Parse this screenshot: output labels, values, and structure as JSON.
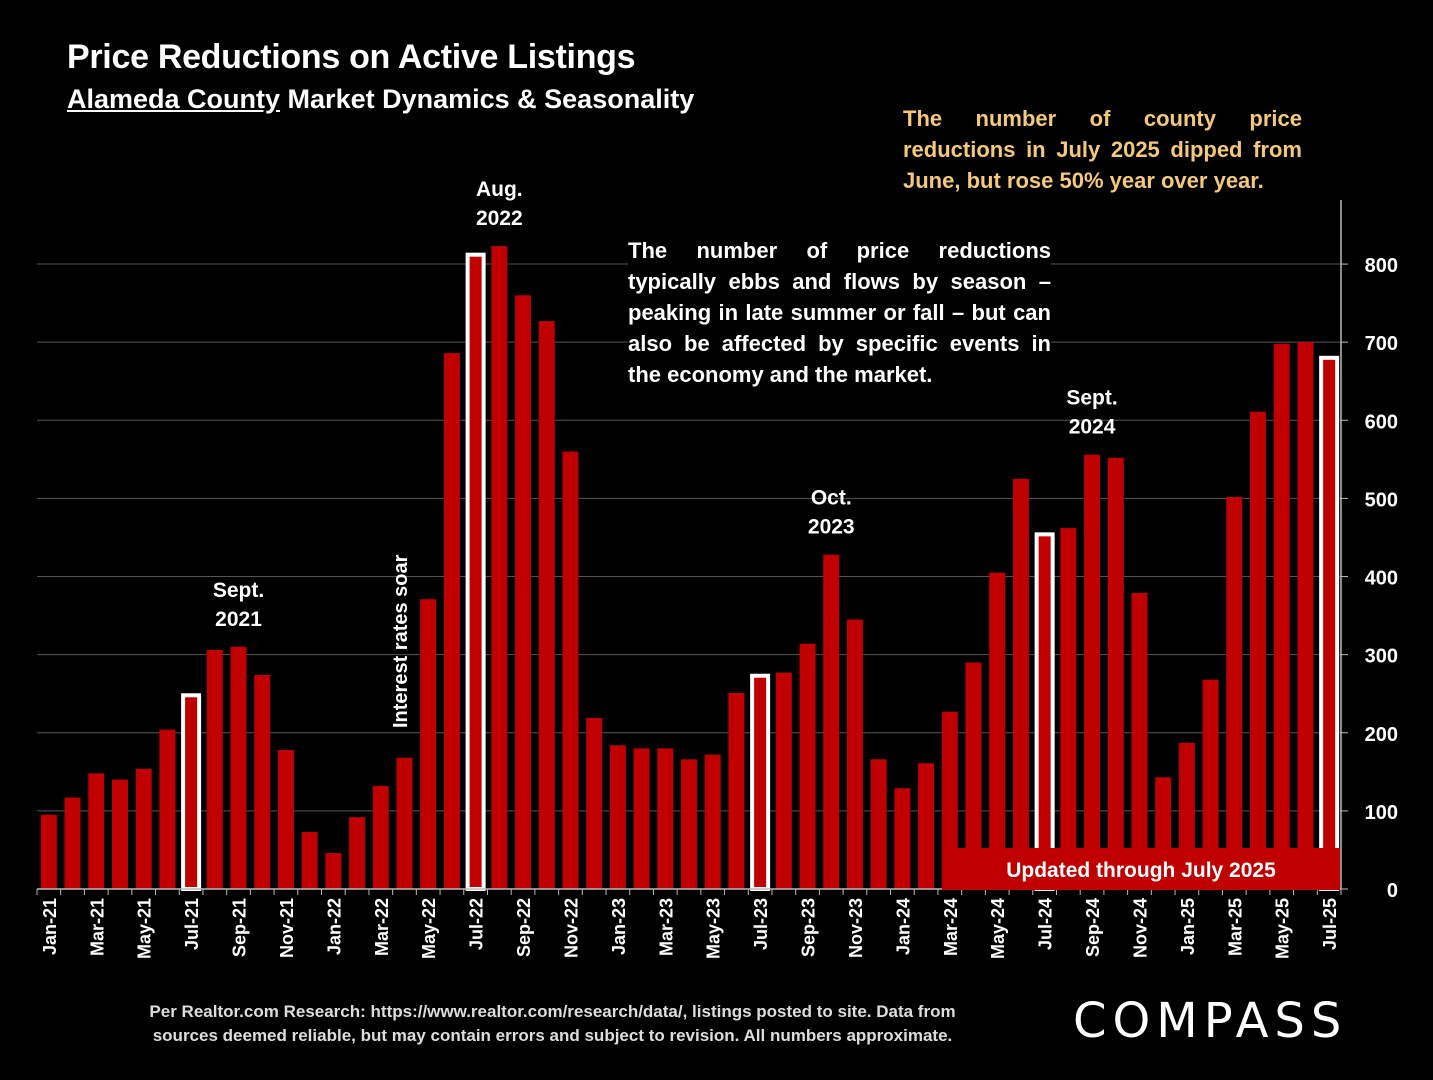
{
  "header": {
    "title": "Price Reductions on Active Listings",
    "subtitle_underlined": "Alameda County",
    "subtitle_rest": " Market Dynamics & Seasonality"
  },
  "notes": {
    "top_right": "The number of county price reductions in July 2025 dipped from June, but rose 50% year over year.",
    "middle": "The number of price reductions typically ebbs and flows by season – peaking in late summer or fall – but can also be affected by specific events in the economy and the market."
  },
  "footer": {
    "line1": "Per Realtor.com Research:  https://www.realtor.com/research/data/, listings posted to site. Data from",
    "line2": "sources deemed reliable, but may contain errors and subject to revision. All numbers approximate."
  },
  "logo": "COMPASS",
  "chart_data": {
    "type": "bar",
    "categories": [
      "Jan-21",
      "Feb-21",
      "Mar-21",
      "Apr-21",
      "May-21",
      "Jun-21",
      "Jul-21",
      "Aug-21",
      "Sep-21",
      "Oct-21",
      "Nov-21",
      "Dec-21",
      "Jan-22",
      "Feb-22",
      "Mar-22",
      "Apr-22",
      "May-22",
      "Jun-22",
      "Jul-22",
      "Aug-22",
      "Sep-22",
      "Oct-22",
      "Nov-22",
      "Dec-22",
      "Jan-23",
      "Feb-23",
      "Mar-23",
      "Apr-23",
      "May-23",
      "Jun-23",
      "Jul-23",
      "Aug-23",
      "Sep-23",
      "Oct-23",
      "Nov-23",
      "Dec-23",
      "Jan-24",
      "Feb-24",
      "Mar-24",
      "Apr-24",
      "May-24",
      "Jun-24",
      "Jul-24",
      "Aug-24",
      "Sep-24",
      "Oct-24",
      "Nov-24",
      "Dec-24",
      "Jan-25",
      "Feb-25",
      "Mar-25",
      "Apr-25",
      "May-25",
      "Jun-25",
      "Jul-25"
    ],
    "values": [
      95,
      117,
      148,
      140,
      154,
      204,
      248,
      306,
      310,
      274,
      178,
      73,
      46,
      92,
      132,
      168,
      371,
      686,
      812,
      823,
      760,
      727,
      560,
      219,
      184,
      180,
      180,
      166,
      172,
      251,
      273,
      277,
      314,
      428,
      345,
      166,
      129,
      161,
      227,
      290,
      405,
      525,
      454,
      462,
      556,
      552,
      379,
      143,
      187,
      268,
      502,
      611,
      698,
      700,
      680
    ],
    "highlighted": [
      "Jul-21",
      "Jul-22",
      "Jul-23",
      "Jul-24",
      "Jul-25"
    ],
    "x_tick_labels": [
      "Jan-21",
      "Mar-21",
      "May-21",
      "Jul-21",
      "Sep-21",
      "Nov-21",
      "Jan-22",
      "Mar-22",
      "May-22",
      "Jul-22",
      "Sep-22",
      "Nov-22",
      "Jan-23",
      "Mar-23",
      "May-23",
      "Jul-23",
      "Sep-23",
      "Nov-23",
      "Jan-24",
      "Mar-24",
      "May-24",
      "Jul-24",
      "Sep-24",
      "Nov-24",
      "Jan-25",
      "Mar-25",
      "May-25",
      "Jul-25"
    ],
    "y_ticks": [
      0,
      100,
      200,
      300,
      400,
      500,
      600,
      700,
      800
    ],
    "ylim": [
      0,
      850
    ],
    "y_axis_side": "right",
    "grid": true,
    "bar_color": "#c00000",
    "highlight_color": "#ffffff",
    "annotations": [
      {
        "category": "Sep-21",
        "lines": [
          "Sept.",
          "2021"
        ]
      },
      {
        "category": "Aug-22",
        "lines": [
          "Aug.",
          "2022"
        ]
      },
      {
        "category": "Oct-23",
        "lines": [
          "Oct.",
          "2023"
        ]
      },
      {
        "category": "Sep-24",
        "lines": [
          "Sept.",
          "2024"
        ]
      }
    ],
    "event_label": {
      "category": "Mar-22",
      "text": "Interest rates soar"
    },
    "banner": "Updated through July 2025"
  }
}
